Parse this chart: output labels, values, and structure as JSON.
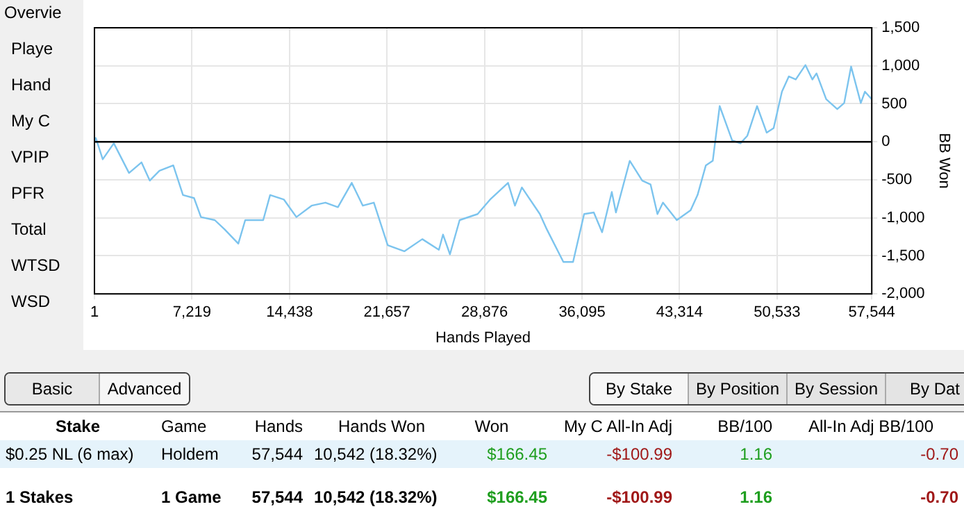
{
  "chart_data": [
    {
      "type": "line",
      "xlabel": "Hands Played",
      "ylabel": "BB Won",
      "color": "#7cc4ee",
      "marker": "none",
      "grid": true,
      "x": [
        1,
        102,
        614,
        1434,
        2560,
        3482,
        4096,
        4813,
        5837,
        6554,
        7373,
        7885,
        8909,
        9626,
        10650,
        11162,
        12493,
        13005,
        14029,
        14950,
        16077,
        17101,
        18022,
        19046,
        19866,
        20685,
        21709,
        22938,
        24269,
        25498,
        25805,
        26317,
        27034,
        28365,
        29286,
        30618,
        31130,
        31642,
        32973,
        33485,
        34714,
        35430,
        36250,
        36966,
        37581,
        38298,
        38605,
        39629,
        40550,
        41165,
        41677,
        42086,
        43110,
        44134,
        44646,
        45261,
        45773,
        46285,
        47206,
        47821,
        48333,
        49050,
        49766,
        50278,
        50893,
        51405,
        51917,
        52634,
        53146,
        53453,
        54170,
        54989,
        55501,
        56013,
        56730,
        57037,
        57544
      ],
      "values": [
        0,
        50,
        -230,
        -20,
        -410,
        -270,
        -510,
        -380,
        -310,
        -700,
        -740,
        -990,
        -1030,
        -1150,
        -1340,
        -1030,
        -1030,
        -700,
        -760,
        -990,
        -840,
        -800,
        -860,
        -540,
        -840,
        -800,
        -1360,
        -1440,
        -1280,
        -1420,
        -1220,
        -1480,
        -1030,
        -950,
        -760,
        -540,
        -840,
        -600,
        -950,
        -1150,
        -1580,
        -1580,
        -950,
        -930,
        -1190,
        -660,
        -930,
        -250,
        -510,
        -560,
        -950,
        -800,
        -1030,
        -900,
        -700,
        -310,
        -250,
        470,
        20,
        -20,
        80,
        470,
        120,
        180,
        660,
        860,
        820,
        1010,
        820,
        900,
        560,
        430,
        510,
        990,
        510,
        660,
        560
      ],
      "xlim": [
        1,
        57544
      ],
      "xticks": [
        1,
        {
          "value": 7219,
          "label": "7,219"
        },
        {
          "value": 14438,
          "label": "14,438"
        },
        {
          "value": 21657,
          "label": "21,657"
        },
        {
          "value": 28876,
          "label": "28,876"
        },
        {
          "value": 36095,
          "label": "36,095"
        },
        {
          "value": 43314,
          "label": "43,314"
        },
        {
          "value": 50533,
          "label": "50,533"
        },
        {
          "value": 57544,
          "label": "57,544"
        }
      ],
      "ylim": [
        -2000,
        1500
      ],
      "yticks": [
        {
          "value": -2000,
          "label": "-2,000"
        },
        {
          "value": -1500,
          "label": "-1,500"
        },
        {
          "value": -1000,
          "label": "-1,000"
        },
        -500,
        0,
        500,
        {
          "value": 1000,
          "label": "1,000"
        },
        {
          "value": 1500,
          "label": "1,500"
        }
      ],
      "ref_lines": [
        {
          "axis": "y",
          "value": 0,
          "color": "#000000"
        }
      ]
    },
    {
      "type": "other",
      "annotations": [
        "Overvie",
        "Playe",
        "Hand",
        "My C",
        "VPIP",
        "PFR",
        "Total",
        "WTSD",
        "WSD",
        "Basic",
        "Advanced",
        "By Stake",
        "By Position",
        "By Session",
        "By Dat",
        "Stake",
        "Game",
        "Hands",
        "Hands Won",
        "Won",
        "My C All-In Adj",
        "BB/100",
        "All-In Adj BB/100",
        "$0.25 NL (6 max)",
        "Holdem",
        "57,544",
        "10,542 (18.32%)",
        "$166.45",
        "-$100.99",
        "1.16",
        "-0.70",
        "1 Stakes",
        "1 Game",
        "57,544",
        "10,542 (18.32%)",
        "$166.45",
        "-$100.99",
        "1.16",
        "-0.70"
      ]
    }
  ]
}
